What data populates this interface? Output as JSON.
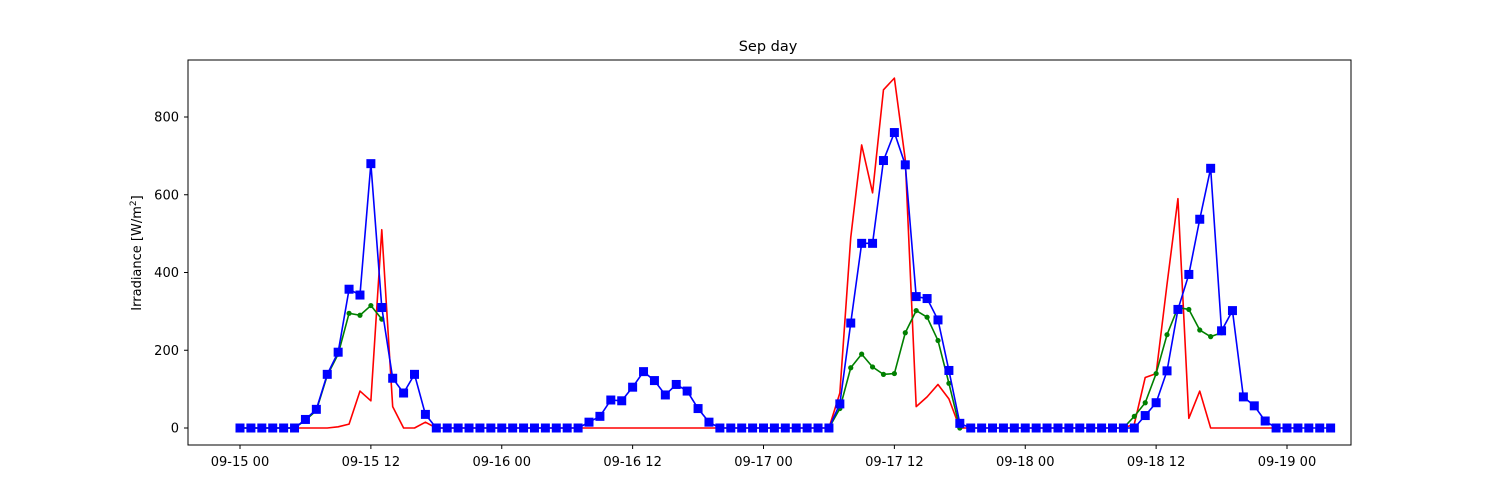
{
  "chart_data": {
    "type": "line",
    "title": "Sep day",
    "xlabel": "",
    "ylabel": "Irradiance [W/m²]",
    "ylabel_parts": {
      "base": "Irradiance [W/m",
      "sup": "2",
      "end": "]"
    },
    "x_ticks": [
      "09-15 00",
      "09-15 12",
      "09-16 00",
      "09-16 12",
      "09-17 00",
      "09-17 12",
      "09-18 00",
      "09-18 12",
      "09-19 00"
    ],
    "y_ticks": [
      0,
      200,
      400,
      600,
      800
    ],
    "ylim": [
      -45,
      945
    ],
    "x_unit": "hours since 09-15 00",
    "xlim_hours": [
      -4.5,
      101.5
    ],
    "grid": false,
    "legend": null,
    "series": [
      {
        "name": "red",
        "color": "#ff0000",
        "marker": "none",
        "x_start": 0,
        "values": [
          0,
          0,
          0,
          0,
          0,
          0,
          0,
          0,
          0,
          3,
          10,
          95,
          70,
          510,
          55,
          0,
          0,
          15,
          0,
          0,
          0,
          0,
          0,
          0,
          0,
          0,
          0,
          0,
          0,
          0,
          0,
          0,
          0,
          0,
          0,
          0,
          0,
          0,
          0,
          0,
          0,
          0,
          0,
          0,
          0,
          0,
          0,
          0,
          0,
          0,
          0,
          0,
          0,
          0,
          0,
          90,
          490,
          728,
          605,
          870,
          900,
          690,
          55,
          80,
          112,
          75,
          0,
          0,
          0,
          0,
          0,
          0,
          0,
          0,
          0,
          0,
          0,
          0,
          0,
          0,
          0,
          0,
          10,
          130,
          140,
          370,
          590,
          25,
          95,
          0,
          0,
          0,
          0,
          0,
          0,
          0,
          0,
          0
        ]
      },
      {
        "name": "green",
        "color": "#008000",
        "marker": "dot",
        "x_start": 0,
        "values": [
          0,
          0,
          0,
          0,
          0,
          0,
          20,
          45,
          135,
          190,
          295,
          290,
          315,
          280,
          null,
          null,
          null,
          null,
          null,
          null,
          null,
          null,
          null,
          null,
          null,
          null,
          null,
          null,
          null,
          null,
          null,
          null,
          null,
          null,
          null,
          null,
          null,
          null,
          null,
          null,
          null,
          null,
          null,
          null,
          null,
          null,
          null,
          null,
          null,
          null,
          null,
          null,
          null,
          null,
          0,
          50,
          155,
          190,
          157,
          138,
          140,
          245,
          302,
          285,
          225,
          115,
          0,
          null,
          null,
          null,
          null,
          null,
          null,
          null,
          null,
          null,
          null,
          null,
          null,
          null,
          null,
          0,
          30,
          65,
          140,
          240,
          310,
          305,
          252,
          235,
          245,
          null,
          null,
          null,
          null,
          null,
          null,
          null
        ]
      },
      {
        "name": "blue",
        "color": "#0000ff",
        "marker": "square",
        "x_start": 0,
        "values": [
          0,
          0,
          0,
          0,
          0,
          0,
          22,
          48,
          138,
          195,
          357,
          342,
          680,
          310,
          128,
          90,
          138,
          35,
          0,
          0,
          0,
          0,
          0,
          0,
          0,
          0,
          0,
          0,
          0,
          0,
          0,
          0,
          15,
          30,
          72,
          70,
          105,
          145,
          122,
          85,
          112,
          95,
          50,
          15,
          0,
          0,
          0,
          0,
          0,
          0,
          0,
          0,
          0,
          0,
          0,
          62,
          270,
          475,
          475,
          688,
          760,
          677,
          338,
          333,
          278,
          148,
          12,
          0,
          0,
          0,
          0,
          0,
          0,
          0,
          0,
          0,
          0,
          0,
          0,
          0,
          0,
          0,
          0,
          32,
          65,
          147,
          305,
          395,
          537,
          668,
          250,
          302,
          80,
          57,
          18,
          0,
          0,
          0,
          0,
          0,
          0
        ]
      }
    ]
  }
}
